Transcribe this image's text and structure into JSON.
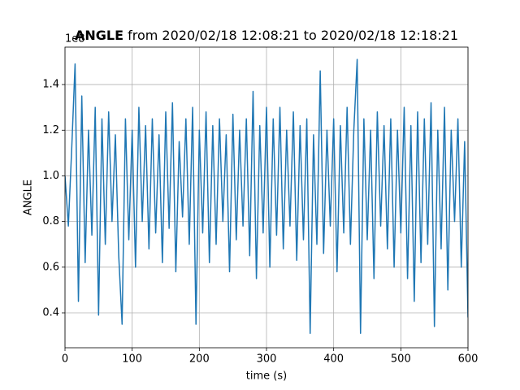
{
  "chart_data": {
    "type": "line",
    "title_bold": "ANGLE",
    "title": "from 2020/02/18 12:08:21 to 2020/02/18 12:18:21",
    "offset_text": "1e8",
    "xlabel": "time (s)",
    "ylabel": "ANGLE",
    "color": "#1f77b4",
    "grid": true,
    "xlim": [
      0,
      600
    ],
    "ylim": [
      0.247,
      1.564
    ],
    "xticks": [
      0,
      100,
      200,
      300,
      400,
      500,
      600
    ],
    "yticks": [
      0.4,
      0.6,
      0.8,
      {
        "value": 1,
        "label": "1.0"
      },
      1.2,
      1.4
    ],
    "x": [
      0,
      5,
      10,
      15,
      20,
      25,
      30,
      35,
      40,
      45,
      50,
      55,
      60,
      65,
      70,
      75,
      80,
      85,
      90,
      95,
      100,
      105,
      110,
      115,
      120,
      125,
      130,
      135,
      140,
      145,
      150,
      155,
      160,
      165,
      170,
      175,
      180,
      185,
      190,
      195,
      200,
      205,
      210,
      215,
      220,
      225,
      230,
      235,
      240,
      245,
      250,
      255,
      260,
      265,
      270,
      275,
      280,
      285,
      290,
      295,
      300,
      305,
      310,
      315,
      320,
      325,
      330,
      335,
      340,
      345,
      350,
      355,
      360,
      365,
      370,
      375,
      380,
      385,
      390,
      395,
      400,
      405,
      410,
      415,
      420,
      425,
      430,
      435,
      440,
      445,
      450,
      455,
      460,
      465,
      470,
      475,
      480,
      485,
      490,
      495,
      500,
      505,
      510,
      515,
      520,
      525,
      530,
      535,
      540,
      545,
      550,
      555,
      560,
      565,
      570,
      575,
      580,
      585,
      590,
      595,
      600
    ],
    "values": [
      1.0,
      0.78,
      1.12,
      1.49,
      0.45,
      1.35,
      0.62,
      1.2,
      0.74,
      1.3,
      0.39,
      1.25,
      0.7,
      1.28,
      0.8,
      1.18,
      0.65,
      0.35,
      1.25,
      0.72,
      1.2,
      0.6,
      1.3,
      0.8,
      1.22,
      0.68,
      1.25,
      0.75,
      1.18,
      0.62,
      1.28,
      0.77,
      1.32,
      0.58,
      1.15,
      0.82,
      1.25,
      0.7,
      1.3,
      0.35,
      1.2,
      0.75,
      1.28,
      0.62,
      1.22,
      0.7,
      1.25,
      0.8,
      1.18,
      0.58,
      1.27,
      0.72,
      1.2,
      0.78,
      1.25,
      0.65,
      1.37,
      0.55,
      1.22,
      0.75,
      1.3,
      0.6,
      1.25,
      0.74,
      1.3,
      0.68,
      1.2,
      0.78,
      1.28,
      0.63,
      1.22,
      0.72,
      1.25,
      0.31,
      1.18,
      0.7,
      1.46,
      0.66,
      1.2,
      0.78,
      1.25,
      0.58,
      1.22,
      0.75,
      1.3,
      0.7,
      1.2,
      1.51,
      0.31,
      1.25,
      0.72,
      1.2,
      0.55,
      1.28,
      0.78,
      1.22,
      0.68,
      1.25,
      0.6,
      1.2,
      0.75,
      1.3,
      0.55,
      1.22,
      0.45,
      1.28,
      0.62,
      1.25,
      0.7,
      1.32,
      0.34,
      1.2,
      0.68,
      1.3,
      0.5,
      1.2,
      0.8,
      1.25,
      0.6,
      1.15,
      0.38
    ]
  }
}
